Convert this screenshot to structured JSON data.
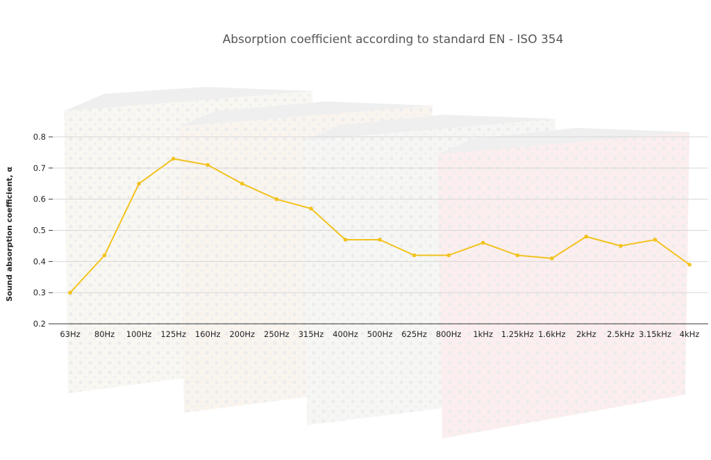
{
  "chart_data": {
    "type": "line",
    "title": "Absorption coefficient according to standard EN - ISO 354",
    "xlabel": "",
    "ylabel": "Sound absorption coefficient, α",
    "ylim": [
      0.2,
      0.8
    ],
    "yticks": [
      "0.2",
      "0.3",
      "0.4",
      "0.5",
      "0.6",
      "0.7",
      "0.8"
    ],
    "grid": true,
    "categories": [
      "63Hz",
      "80Hz",
      "100Hz",
      "125Hz",
      "160Hz",
      "200Hz",
      "250Hz",
      "315Hz",
      "400Hz",
      "500Hz",
      "625Hz",
      "800Hz",
      "1kHz",
      "1.25kHz",
      "1.6kHz",
      "2kHz",
      "2.5kHz",
      "3.15kHz",
      "4kHz"
    ],
    "series": [
      {
        "values": [
          0.3,
          0.42,
          0.65,
          0.73,
          0.71,
          0.65,
          0.6,
          0.57,
          0.47,
          0.47,
          0.42,
          0.42,
          0.46,
          0.42,
          0.41,
          0.48,
          0.45,
          0.47,
          0.39
        ],
        "color": "#f2c21b"
      }
    ]
  },
  "colors": {
    "panel_beige": "#ece4d4",
    "panel_pink": "#f6cfcf",
    "panel_top": "#d9d9d9",
    "perforation": "#b9bcbf"
  }
}
